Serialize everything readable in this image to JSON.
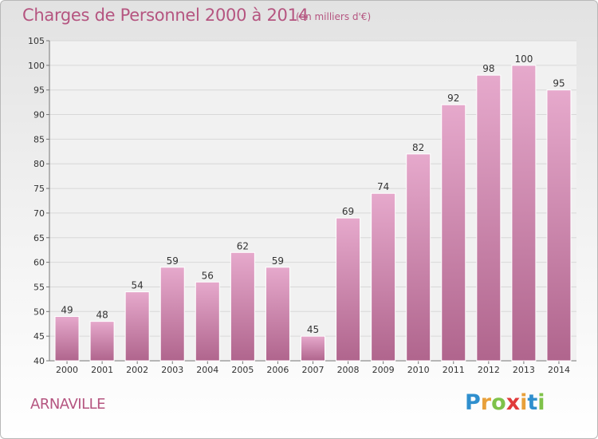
{
  "header": {
    "title": "Charges de Personnel 2000 à 2014",
    "subtitle": "(en milliers d'€)"
  },
  "footer": {
    "town": "ARNAVILLE",
    "logo_letters": [
      "P",
      "r",
      "o",
      "x",
      "i",
      "t",
      "i"
    ],
    "logo_colors": [
      "#2f8fce",
      "#e8a03a",
      "#7fc24a",
      "#e03a3a",
      "#e8a03a",
      "#2f8fce",
      "#7fc24a"
    ]
  },
  "colors": {
    "bar_top": "#e6a9cc",
    "bar_bottom": "#b0658d",
    "text": "#b55580",
    "grid": "#d8d8d8"
  },
  "chart_data": {
    "type": "bar",
    "title": "Charges de Personnel 2000 à 2014",
    "subtitle": "(en milliers d'€)",
    "categories": [
      "2000",
      "2001",
      "2002",
      "2003",
      "2004",
      "2005",
      "2006",
      "2007",
      "2008",
      "2009",
      "2010",
      "2011",
      "2012",
      "2013",
      "2014"
    ],
    "values": [
      49,
      48,
      54,
      59,
      56,
      62,
      59,
      45,
      69,
      74,
      82,
      92,
      98,
      100,
      95
    ],
    "ylim": [
      40,
      105
    ],
    "yticks": [
      40,
      45,
      50,
      55,
      60,
      65,
      70,
      75,
      80,
      85,
      90,
      95,
      100,
      105
    ],
    "grid": true,
    "data_labels": true
  }
}
